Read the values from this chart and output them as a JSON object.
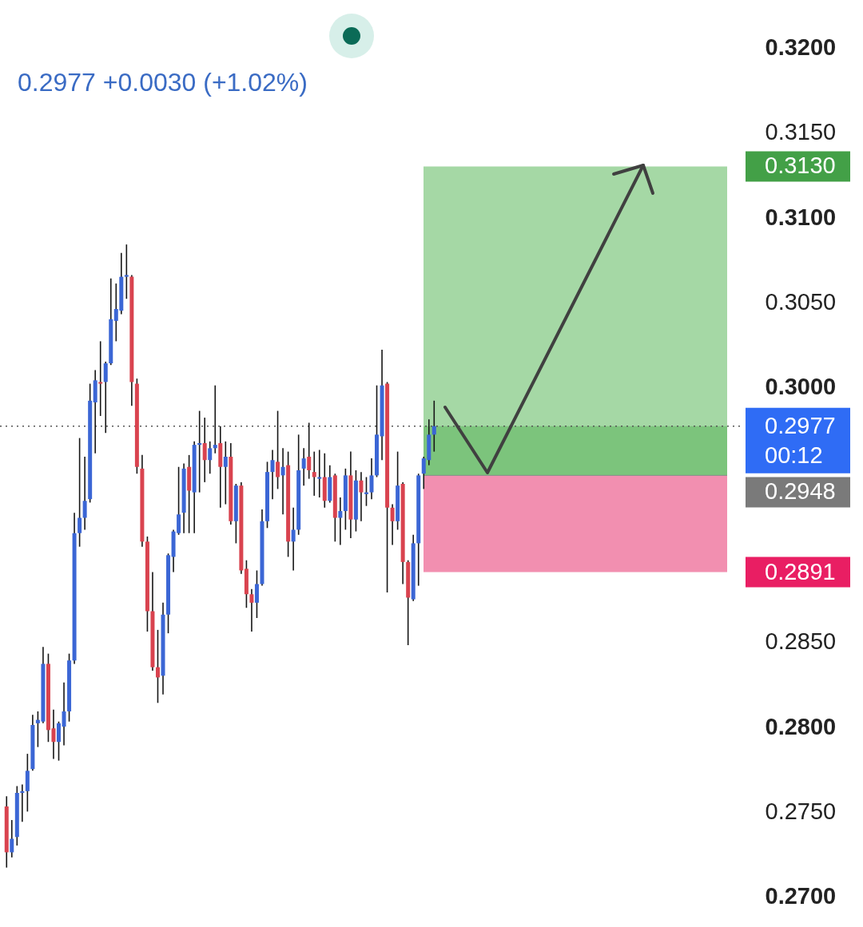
{
  "chart_data": {
    "type": "candlestick",
    "subtitle": "0.2977  +0.0030 (+1.02%)",
    "categories": [
      null,
      null,
      null,
      null,
      null,
      null,
      null,
      null,
      null,
      null,
      null,
      null,
      null,
      null,
      null,
      null,
      null,
      null,
      null,
      null,
      null,
      null,
      null,
      null,
      null,
      null,
      null,
      null,
      null,
      null,
      null,
      null,
      null,
      null,
      null,
      null,
      null,
      null,
      null,
      null,
      null,
      null,
      null,
      null,
      null,
      null,
      null,
      null,
      null,
      null,
      null,
      null,
      null,
      null,
      null,
      null,
      null,
      null,
      null,
      null,
      null,
      null,
      null,
      null,
      null,
      null,
      null,
      null,
      null,
      null,
      null,
      null,
      null,
      null,
      null,
      null,
      null,
      null,
      null,
      null,
      null,
      null,
      null,
      null,
      null,
      null,
      null,
      null,
      null,
      null,
      null,
      null,
      null,
      null,
      null,
      null,
      null,
      null,
      null,
      null,
      null,
      null,
      null,
      null,
      null,
      null,
      null,
      null,
      null,
      null,
      null,
      null,
      null,
      null,
      null,
      null,
      null,
      null,
      null,
      null,
      null,
      null,
      null,
      null,
      null,
      null,
      null,
      null,
      null,
      null,
      null,
      null,
      null,
      null,
      null,
      null,
      null,
      null,
      null,
      null,
      null
    ],
    "ohlc": [
      [
        0.2753,
        0.2759,
        0.2717,
        0.2726
      ],
      [
        0.2726,
        0.2745,
        0.2723,
        0.2734
      ],
      [
        0.2735,
        0.2765,
        0.273,
        0.2761
      ],
      [
        0.2761,
        0.2766,
        0.2744,
        0.2762
      ],
      [
        0.2762,
        0.2784,
        0.275,
        0.2774
      ],
      [
        0.2775,
        0.2807,
        0.2774,
        0.2801
      ],
      [
        0.2802,
        0.2809,
        0.2788,
        0.2804
      ],
      [
        0.2803,
        0.2847,
        0.2802,
        0.2837
      ],
      [
        0.2837,
        0.2843,
        0.2791,
        0.2798
      ],
      [
        0.2799,
        0.281,
        0.2781,
        0.2791
      ],
      [
        0.2791,
        0.2803,
        0.278,
        0.2802
      ],
      [
        0.28,
        0.2826,
        0.2789,
        0.2809
      ],
      [
        0.2809,
        0.2843,
        0.2803,
        0.2839
      ],
      [
        0.2839,
        0.2926,
        0.2837,
        0.2914
      ],
      [
        0.2914,
        0.297,
        0.2906,
        0.2923
      ],
      [
        0.2923,
        0.2959,
        0.2916,
        0.2933
      ],
      [
        0.2934,
        0.3002,
        0.2932,
        0.2992
      ],
      [
        0.2991,
        0.301,
        0.2961,
        0.3004
      ],
      [
        0.3003,
        0.3027,
        0.2983,
        0.3002
      ],
      [
        0.3003,
        0.3015,
        0.2973,
        0.3014
      ],
      [
        0.3014,
        0.3064,
        0.3013,
        0.304
      ],
      [
        0.3039,
        0.3061,
        0.3027,
        0.3046
      ],
      [
        0.3045,
        0.3079,
        0.3043,
        0.3065
      ],
      [
        0.3065,
        0.3084,
        0.3052,
        0.3066
      ],
      [
        0.3065,
        0.3066,
        0.2989,
        0.3003
      ],
      [
        0.3002,
        0.3005,
        0.2949,
        0.2953
      ],
      [
        0.2952,
        0.296,
        0.2906,
        0.2909
      ],
      [
        0.2909,
        0.2912,
        0.2856,
        0.2868
      ],
      [
        0.2868,
        0.2891,
        0.2833,
        0.2835
      ],
      [
        0.2835,
        0.2857,
        0.2814,
        0.2829
      ],
      [
        0.283,
        0.2873,
        0.2819,
        0.2866
      ],
      [
        0.2866,
        0.2902,
        0.2855,
        0.2901
      ],
      [
        0.29,
        0.2916,
        0.2891,
        0.2915
      ],
      [
        0.2914,
        0.2953,
        0.2913,
        0.2925
      ],
      [
        0.2926,
        0.2955,
        0.2914,
        0.2952
      ],
      [
        0.2953,
        0.296,
        0.2914,
        0.2939
      ],
      [
        0.2938,
        0.2968,
        0.2914,
        0.2966
      ],
      [
        0.2966,
        0.2986,
        0.2938,
        0.2967
      ],
      [
        0.2967,
        0.2982,
        0.2944,
        0.2957
      ],
      [
        0.2957,
        0.2968,
        0.2949,
        0.2964
      ],
      [
        0.2964,
        0.3001,
        0.2961,
        0.2966
      ],
      [
        0.2967,
        0.2977,
        0.2929,
        0.2953
      ],
      [
        0.2953,
        0.2968,
        0.2931,
        0.2959
      ],
      [
        0.2959,
        0.2967,
        0.2919,
        0.2921
      ],
      [
        0.2921,
        0.2943,
        0.2908,
        0.2942
      ],
      [
        0.2942,
        0.2944,
        0.289,
        0.2892
      ],
      [
        0.2893,
        0.2898,
        0.287,
        0.2878
      ],
      [
        0.2878,
        0.2881,
        0.2856,
        0.2873
      ],
      [
        0.2873,
        0.2892,
        0.2864,
        0.2884
      ],
      [
        0.2884,
        0.2928,
        0.2883,
        0.2921
      ],
      [
        0.2921,
        0.2956,
        0.2917,
        0.295
      ],
      [
        0.295,
        0.2963,
        0.2934,
        0.2957
      ],
      [
        0.2956,
        0.2986,
        0.294,
        0.2947
      ],
      [
        0.2948,
        0.2964,
        0.2925,
        0.2953
      ],
      [
        0.2954,
        0.2962,
        0.29,
        0.2909
      ],
      [
        0.2909,
        0.2929,
        0.2892,
        0.2916
      ],
      [
        0.2916,
        0.2972,
        0.2913,
        0.2951
      ],
      [
        0.2952,
        0.2964,
        0.2942,
        0.2958
      ],
      [
        0.2959,
        0.2979,
        0.2946,
        0.2951
      ],
      [
        0.295,
        0.2962,
        0.2936,
        0.2947
      ],
      [
        0.2946,
        0.2963,
        0.2935,
        0.2947
      ],
      [
        0.2947,
        0.2961,
        0.2929,
        0.2933
      ],
      [
        0.2933,
        0.2954,
        0.2932,
        0.2947
      ],
      [
        0.2948,
        0.2949,
        0.2909,
        0.2923
      ],
      [
        0.2923,
        0.2935,
        0.2907,
        0.2927
      ],
      [
        0.2927,
        0.2952,
        0.2916,
        0.2948
      ],
      [
        0.2948,
        0.2962,
        0.2911,
        0.2922
      ],
      [
        0.2922,
        0.2951,
        0.2915,
        0.2945
      ],
      [
        0.2945,
        0.295,
        0.2921,
        0.2938
      ],
      [
        0.2937,
        0.2947,
        0.293,
        0.2938
      ],
      [
        0.2938,
        0.2958,
        0.2934,
        0.2948
      ],
      [
        0.2948,
        0.3001,
        0.2947,
        0.2972
      ],
      [
        0.2971,
        0.3022,
        0.2957,
        0.3001
      ],
      [
        0.3002,
        0.3003,
        0.2879,
        0.2929
      ],
      [
        0.2929,
        0.2931,
        0.2907,
        0.2921
      ],
      [
        0.2921,
        0.2962,
        0.2916,
        0.2942
      ],
      [
        0.2943,
        0.2944,
        0.2884,
        0.2897
      ],
      [
        0.2897,
        0.2898,
        0.2848,
        0.2876
      ],
      [
        0.2875,
        0.2913,
        0.2874,
        0.2908
      ],
      [
        0.2908,
        0.2949,
        0.2883,
        0.2948
      ],
      [
        0.2949,
        0.2959,
        0.294,
        0.2958
      ],
      [
        0.2957,
        0.2981,
        0.2954,
        0.2972
      ],
      [
        0.2972,
        0.2992,
        0.2962,
        0.2977
      ],
      null,
      null,
      null,
      null,
      null,
      null,
      null,
      null,
      null,
      null,
      null,
      null,
      null,
      null,
      null,
      null,
      null,
      null,
      null,
      null,
      null,
      null,
      null,
      null,
      null,
      null,
      null,
      null,
      null,
      null,
      null,
      null,
      null,
      null,
      null,
      null,
      null,
      null,
      null,
      null,
      null,
      null,
      null,
      null,
      null,
      null,
      null,
      null,
      null,
      null,
      null,
      null,
      null,
      null,
      null,
      null,
      null,
      null
    ],
    "colors": [
      "#d9434f",
      "#3b66d5",
      "#3b66d5",
      "#3b66d5",
      "#3b66d5",
      "#3b66d5",
      "#3b66d5",
      "#3b66d5",
      "#d9434f",
      "#d9434f",
      "#3b66d5",
      "#3b66d5",
      "#3b66d5",
      "#3b66d5",
      "#3b66d5",
      "#3b66d5",
      "#3b66d5",
      "#3b66d5",
      "#d9434f",
      "#3b66d5",
      "#3b66d5",
      "#3b66d5",
      "#3b66d5",
      "#3b66d5",
      "#d9434f",
      "#d9434f",
      "#d9434f",
      "#d9434f",
      "#d9434f",
      "#d9434f",
      "#3b66d5",
      "#3b66d5",
      "#3b66d5",
      "#3b66d5",
      "#3b66d5",
      "#d9434f",
      "#3b66d5",
      "#3b66d5",
      "#d9434f",
      "#3b66d5",
      "#3b66d5",
      "#d9434f",
      "#3b66d5",
      "#d9434f",
      "#3b66d5",
      "#d9434f",
      "#d9434f",
      "#d9434f",
      "#3b66d5",
      "#3b66d5",
      "#3b66d5",
      "#3b66d5",
      "#d9434f",
      "#3b66d5",
      "#d9434f",
      "#3b66d5",
      "#3b66d5",
      "#3b66d5",
      "#d9434f",
      "#d9434f",
      "#3b66d5",
      "#d9434f",
      "#3b66d5",
      "#d9434f",
      "#3b66d5",
      "#3b66d5",
      "#d9434f",
      "#3b66d5",
      "#d9434f",
      "#3b66d5",
      "#3b66d5",
      "#3b66d5",
      "#3b66d5",
      "#d9434f",
      "#d9434f",
      "#3b66d5",
      "#d9434f",
      "#d9434f",
      "#3b66d5",
      "#3b66d5",
      "#3b66d5",
      "#3b66d5",
      "#3b66d5",
      null,
      null,
      null,
      null,
      null,
      null,
      null,
      null,
      null,
      null,
      null,
      null,
      null,
      null,
      null,
      null,
      null,
      null,
      null,
      null,
      null,
      null,
      null,
      null,
      null,
      null,
      null,
      null,
      null,
      null,
      null,
      null,
      null,
      null,
      null,
      null,
      null,
      null,
      null,
      null,
      null,
      null,
      null,
      null,
      null,
      null,
      null,
      null,
      null,
      null,
      null,
      null,
      null,
      null,
      null,
      null,
      null,
      null
    ],
    "ylim": [
      0.2682,
      0.3228
    ],
    "yticks": [
      {
        "value": 0.27,
        "label": "0.2700"
      },
      {
        "value": 0.275,
        "label": "0.2750"
      },
      {
        "value": 0.28,
        "label": "0.2800"
      },
      {
        "value": 0.285,
        "label": "0.2850"
      },
      {
        "value": 0.3,
        "label": "0.3000"
      },
      {
        "value": 0.305,
        "label": "0.3050"
      },
      {
        "value": 0.31,
        "label": "0.3100"
      },
      {
        "value": 0.315,
        "label": "0.3150"
      },
      {
        "value": 0.32,
        "label": "0.3200"
      }
    ],
    "tick_labels": "y",
    "bands": [
      {
        "axis": "y",
        "from": 0.2948,
        "to": 0.313,
        "label": "0.3130",
        "color": "#a5d8a5"
      },
      {
        "axis": "y",
        "from": 0.2891,
        "to": 0.2948,
        "label": "0.2891",
        "color": "#f28fb0"
      },
      {
        "axis": "y",
        "from": 0.2948,
        "to": 0.2977,
        "color": "#7cc47c"
      }
    ],
    "ref_lines": [
      {
        "axis": "y",
        "value": 0.2977,
        "label": "0.2977",
        "color": "#555555",
        "line_style": "dotted"
      },
      {
        "axis": "y",
        "value": 0.2948,
        "label": "0.2948",
        "color": "#8a8a8a",
        "line_style": "solid"
      }
    ],
    "annotations": [
      "00:12"
    ]
  }
}
